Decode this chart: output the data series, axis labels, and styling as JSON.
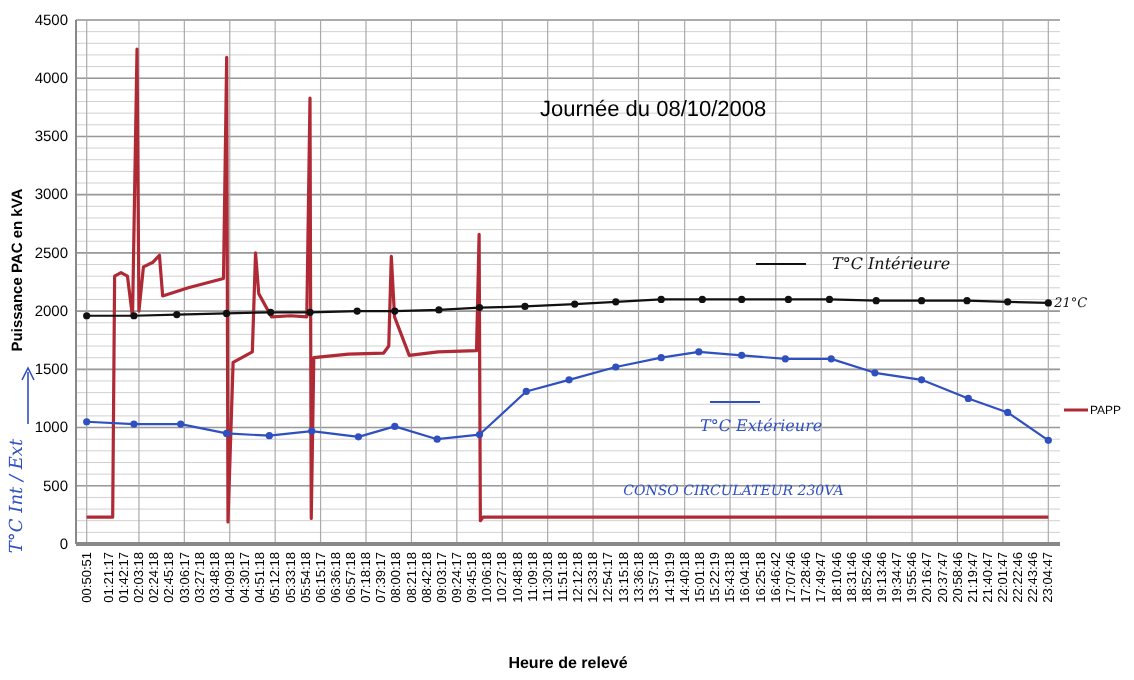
{
  "chart_data": {
    "type": "line",
    "title": "Journée du 08/10/2008",
    "xlabel": "Heure de relevé",
    "ylabel": "Puissance PAC en kVA",
    "xlim": [
      0.6,
      23.35
    ],
    "ylim": [
      0,
      4500
    ],
    "yticks": [
      0,
      500,
      1000,
      1500,
      2000,
      2500,
      3000,
      3500,
      4000,
      4500
    ],
    "xticks": [
      {
        "value": 0.8475,
        "label": "00:50:51"
      },
      {
        "value": 1.3547,
        "label": "01:21:17"
      },
      {
        "value": 1.7047,
        "label": "01:42:17"
      },
      {
        "value": 2.055,
        "label": "02:03:18"
      },
      {
        "value": 2.405,
        "label": "02:24:18"
      },
      {
        "value": 2.755,
        "label": "02:45:18"
      },
      {
        "value": 3.1047,
        "label": "03:06:17"
      },
      {
        "value": 3.455,
        "label": "03:27:18"
      },
      {
        "value": 3.805,
        "label": "03:48:18"
      },
      {
        "value": 4.155,
        "label": "04:09:18"
      },
      {
        "value": 4.5047,
        "label": "04:30:17"
      },
      {
        "value": 4.855,
        "label": "04:51:18"
      },
      {
        "value": 5.205,
        "label": "05:12:18"
      },
      {
        "value": 5.555,
        "label": "05:33:18"
      },
      {
        "value": 5.905,
        "label": "05:54:18"
      },
      {
        "value": 6.2547,
        "label": "06:15:17"
      },
      {
        "value": 6.605,
        "label": "06:36:18"
      },
      {
        "value": 6.955,
        "label": "06:57:18"
      },
      {
        "value": 7.305,
        "label": "07:18:18"
      },
      {
        "value": 7.6547,
        "label": "07:39:17"
      },
      {
        "value": 8.005,
        "label": "08:00:18"
      },
      {
        "value": 8.355,
        "label": "08:21:18"
      },
      {
        "value": 8.705,
        "label": "08:42:18"
      },
      {
        "value": 9.0547,
        "label": "09:03:17"
      },
      {
        "value": 9.4047,
        "label": "09:24:17"
      },
      {
        "value": 9.755,
        "label": "09:45:18"
      },
      {
        "value": 10.105,
        "label": "10:06:18"
      },
      {
        "value": 10.455,
        "label": "10:27:18"
      },
      {
        "value": 10.805,
        "label": "10:48:18"
      },
      {
        "value": 11.155,
        "label": "11:09:18"
      },
      {
        "value": 11.505,
        "label": "11:30:18"
      },
      {
        "value": 11.855,
        "label": "11:51:18"
      },
      {
        "value": 12.205,
        "label": "12:12:18"
      },
      {
        "value": 12.555,
        "label": "12:33:18"
      },
      {
        "value": 12.9047,
        "label": "12:54:17"
      },
      {
        "value": 13.255,
        "label": "13:15:18"
      },
      {
        "value": 13.605,
        "label": "13:36:18"
      },
      {
        "value": 13.955,
        "label": "13:57:18"
      },
      {
        "value": 14.3219,
        "label": "14:19:19"
      },
      {
        "value": 14.6717,
        "label": "14:40:18"
      },
      {
        "value": 15.0217,
        "label": "15:01:18"
      },
      {
        "value": 15.3719,
        "label": "15:22:19"
      },
      {
        "value": 15.7217,
        "label": "15:43:18"
      },
      {
        "value": 16.0717,
        "label": "16:04:18"
      },
      {
        "value": 16.4217,
        "label": "16:25:18"
      },
      {
        "value": 16.7783,
        "label": "16:46:42"
      },
      {
        "value": 17.1294,
        "label": "17:07:46"
      },
      {
        "value": 17.4794,
        "label": "17:28:46"
      },
      {
        "value": 17.8297,
        "label": "17:49:47"
      },
      {
        "value": 18.1794,
        "label": "18:10:46"
      },
      {
        "value": 18.5294,
        "label": "18:31:46"
      },
      {
        "value": 18.8794,
        "label": "18:52:46"
      },
      {
        "value": 19.2294,
        "label": "19:13:46"
      },
      {
        "value": 19.5797,
        "label": "19:34:47"
      },
      {
        "value": 19.9294,
        "label": "19:55:46"
      },
      {
        "value": 20.2797,
        "label": "20:16:47"
      },
      {
        "value": 20.6297,
        "label": "20:37:47"
      },
      {
        "value": 20.9794,
        "label": "20:58:46"
      },
      {
        "value": 21.3297,
        "label": "21:19:47"
      },
      {
        "value": 21.6797,
        "label": "21:40:47"
      },
      {
        "value": 22.0297,
        "label": "22:01:47"
      },
      {
        "value": 22.3794,
        "label": "22:22:46"
      },
      {
        "value": 22.7294,
        "label": "22:43:46"
      },
      {
        "value": 23.0797,
        "label": "23:04:47"
      }
    ],
    "grid": true,
    "legend": "right",
    "series": [
      {
        "name": "PAPP",
        "color": "#b02a36",
        "marker": "none",
        "x": [
          0.847,
          1.448,
          1.493,
          1.64,
          1.79,
          1.907,
          2.011,
          2.055,
          2.159,
          2.381,
          2.529,
          2.603,
          3.196,
          4.01,
          4.084,
          4.114,
          4.232,
          4.677,
          4.751,
          4.825,
          5.121,
          5.565,
          5.936,
          6.01,
          6.039,
          6.098,
          6.898,
          7.713,
          7.831,
          7.89,
          7.965,
          8.305,
          8.97,
          9.86,
          9.92,
          9.949,
          10.008,
          23.08
        ],
        "values": [
          230,
          230,
          2300,
          2330,
          2300,
          1950,
          4250,
          2000,
          2380,
          2420,
          2480,
          2130,
          2200,
          2280,
          4180,
          190,
          1560,
          1650,
          2500,
          2150,
          1950,
          1960,
          1950,
          3830,
          220,
          1600,
          1630,
          1640,
          1700,
          2470,
          1950,
          1620,
          1650,
          1660,
          2660,
          200,
          230,
          230
        ]
      },
      {
        "name": "T°C Intérieure",
        "color": "#111111",
        "marker": "circle",
        "x": [
          0.847,
          1.94,
          2.93,
          4.08,
          5.1,
          6.01,
          7.1,
          7.97,
          8.99,
          9.93,
          10.98,
          12.13,
          13.08,
          14.13,
          15.08,
          15.99,
          17.07,
          18.02,
          19.1,
          20.15,
          21.2,
          22.14,
          23.08
        ],
        "values": [
          1960,
          1960,
          1970,
          1980,
          1990,
          1990,
          2000,
          2000,
          2010,
          2030,
          2040,
          2060,
          2080,
          2100,
          2100,
          2100,
          2100,
          2100,
          2090,
          2090,
          2090,
          2080,
          2070
        ]
      },
      {
        "name": "T°C Extérieure",
        "color": "#3050c0",
        "marker": "circle",
        "x": [
          0.847,
          1.94,
          3.02,
          4.08,
          5.07,
          6.05,
          7.13,
          7.97,
          8.95,
          9.93,
          11.01,
          12.0,
          13.08,
          14.13,
          15.0,
          15.99,
          17.0,
          18.06,
          19.07,
          20.15,
          21.23,
          22.14,
          23.08
        ],
        "values": [
          1050,
          1030,
          1030,
          950,
          930,
          970,
          920,
          1010,
          900,
          940,
          1310,
          1410,
          1520,
          1600,
          1650,
          1620,
          1590,
          1590,
          1470,
          1410,
          1250,
          1130,
          890
        ]
      }
    ],
    "annotations": [
      {
        "text": "21°C",
        "x": 23.08,
        "y": 2070
      },
      {
        "text": "CONSO CIRCULATEUR 230VA",
        "x": 15.8,
        "y": 230
      },
      "T°C Int / Ext"
    ]
  }
}
